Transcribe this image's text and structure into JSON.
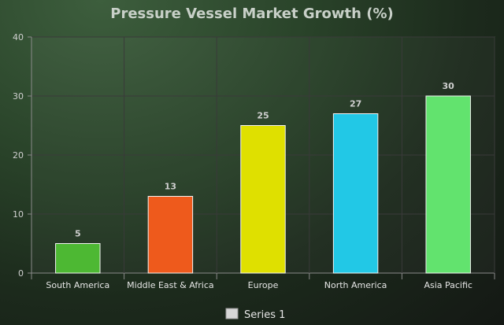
{
  "chart_data": {
    "type": "bar",
    "title": "Pressure Vessel Market Growth (%)",
    "xlabel": "",
    "ylabel": "",
    "categories": [
      "South America",
      "Middle East & Africa",
      "Europe",
      "North America",
      "Asia Pacific"
    ],
    "series": [
      {
        "name": "Series 1",
        "values": [
          5,
          13,
          25,
          27,
          30
        ]
      }
    ],
    "bar_colors": [
      "#4db833",
      "#ee5a1c",
      "#dfe000",
      "#22c8e6",
      "#62e36e"
    ],
    "ylim": [
      0,
      40
    ],
    "yticks": [
      0,
      10,
      20,
      30,
      40
    ],
    "grid": true,
    "legend_position": "bottom-center",
    "legend_color": "#d6d6d6"
  }
}
